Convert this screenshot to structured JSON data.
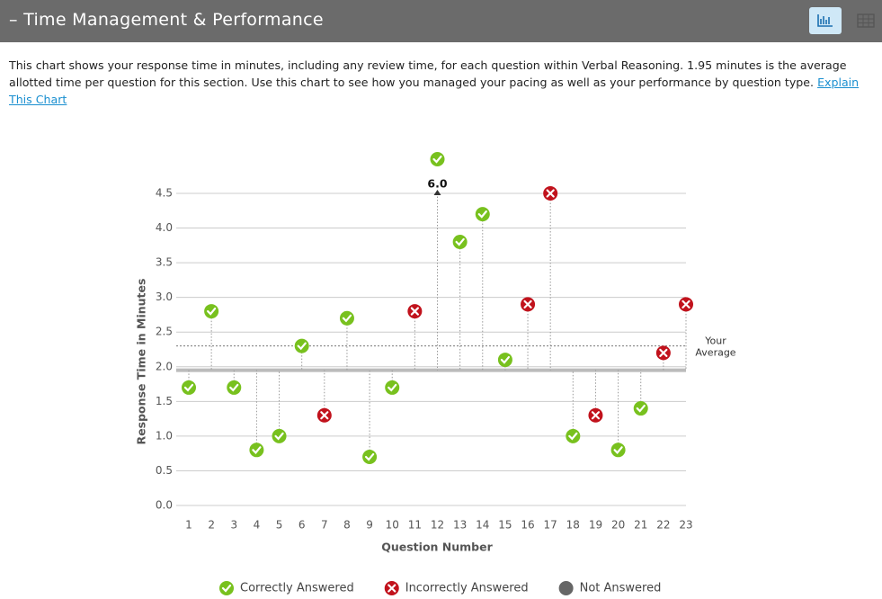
{
  "header": {
    "title": "– Time Management & Performance"
  },
  "description": {
    "text": "This chart shows your response time in minutes, including any review time, for each question within Verbal Reasoning. 1.95 minutes is the average allotted time per question for this section. Use this chart to see how you managed your pacing as well as your performance by question type.",
    "link": "Explain This Chart"
  },
  "chart_data": {
    "type": "scatter",
    "xlabel": "Question Number",
    "ylabel": "Response Time in Minutes",
    "categories": [
      "1",
      "2",
      "3",
      "4",
      "5",
      "6",
      "7",
      "8",
      "9",
      "10",
      "11",
      "12",
      "13",
      "14",
      "15",
      "16",
      "17",
      "18",
      "19",
      "20",
      "21",
      "22",
      "23"
    ],
    "series": [
      {
        "name": "Correctly Answered",
        "color": "#78c11e",
        "values": [
          1.7,
          2.8,
          1.7,
          0.8,
          1.0,
          2.3,
          null,
          2.7,
          0.7,
          1.7,
          null,
          6.0,
          3.8,
          4.2,
          2.1,
          null,
          null,
          1.0,
          null,
          0.8,
          1.4,
          null,
          null
        ],
        "value_labels": [
          null,
          null,
          null,
          null,
          null,
          null,
          null,
          null,
          null,
          null,
          null,
          "6.0",
          null,
          null,
          null,
          null,
          null,
          null,
          null,
          null,
          null,
          null,
          null
        ]
      },
      {
        "name": "Incorrectly Answered",
        "color": "#c1121c",
        "values": [
          null,
          null,
          null,
          null,
          null,
          null,
          1.3,
          null,
          null,
          null,
          2.8,
          null,
          null,
          null,
          null,
          2.9,
          4.5,
          null,
          1.3,
          null,
          null,
          2.2,
          2.9
        ]
      },
      {
        "name": "Not Answered",
        "color": "#666666",
        "values": [
          null,
          null,
          null,
          null,
          null,
          null,
          null,
          null,
          null,
          null,
          null,
          null,
          null,
          null,
          null,
          null,
          null,
          null,
          null,
          null,
          null,
          null,
          null
        ]
      }
    ],
    "allotted": 1.95,
    "average": 2.3,
    "average_label": [
      "Your",
      "Average"
    ],
    "ylim": [
      0,
      4.5
    ],
    "yticks": [
      {
        "value": 0,
        "label": "0.0"
      },
      {
        "value": 0.5,
        "label": "0.5"
      },
      {
        "value": 1,
        "label": "1.0"
      },
      {
        "value": 1.5,
        "label": "1.5"
      },
      {
        "value": 2,
        "label": "2.0"
      },
      {
        "value": 2.5,
        "label": "2.5"
      },
      {
        "value": 3,
        "label": "3.0"
      },
      {
        "value": 3.5,
        "label": "3.5"
      },
      {
        "value": 4,
        "label": "4.0"
      },
      {
        "value": 4.5,
        "label": "4.5"
      }
    ],
    "grid": true
  }
}
